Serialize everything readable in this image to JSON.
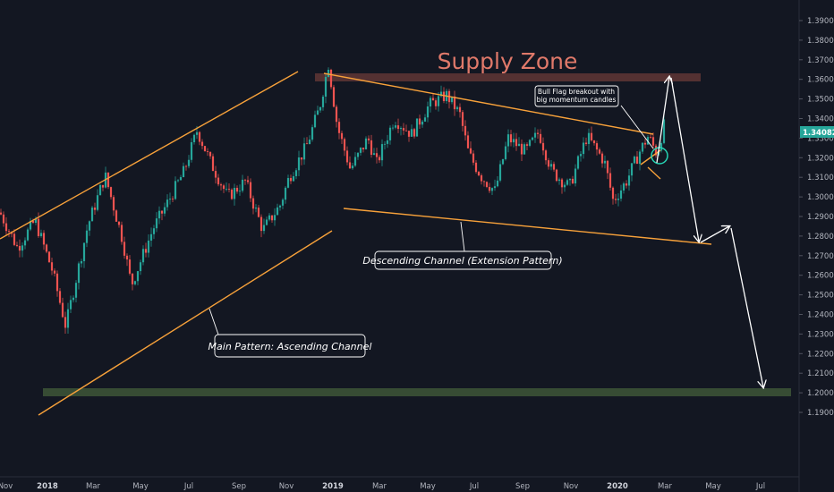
{
  "chart_data": {
    "type": "candlestick",
    "y_ticks": [
      "1.39000",
      "1.38000",
      "1.37000",
      "1.36000",
      "1.35000",
      "1.34000",
      "1.33000",
      "1.32000",
      "1.31000",
      "1.30000",
      "1.29000",
      "1.28000",
      "1.27000",
      "1.26000",
      "1.25000",
      "1.24000",
      "1.23000",
      "1.22000",
      "1.21000",
      "1.20000",
      "1.19000"
    ],
    "x_ticks": [
      {
        "label": "Nov",
        "bold": false,
        "x_index": 0
      },
      {
        "label": "2018",
        "bold": true,
        "x_index": 1
      },
      {
        "label": "Mar",
        "bold": false,
        "x_index": 2
      },
      {
        "label": "May",
        "bold": false,
        "x_index": 3
      },
      {
        "label": "Jul",
        "bold": false,
        "x_index": 4
      },
      {
        "label": "Sep",
        "bold": false,
        "x_index": 5
      },
      {
        "label": "Nov",
        "bold": false,
        "x_index": 6
      },
      {
        "label": "2019",
        "bold": true,
        "x_index": 7
      },
      {
        "label": "Mar",
        "bold": false,
        "x_index": 8
      },
      {
        "label": "May",
        "bold": false,
        "x_index": 9
      },
      {
        "label": "Jul",
        "bold": false,
        "x_index": 10
      },
      {
        "label": "Sep",
        "bold": false,
        "x_index": 11
      },
      {
        "label": "Nov",
        "bold": false,
        "x_index": 12
      },
      {
        "label": "2020",
        "bold": true,
        "x_index": 13
      },
      {
        "label": "Mar",
        "bold": false,
        "x_index": 14
      },
      {
        "label": "May",
        "bold": false,
        "x_index": 15
      },
      {
        "label": "Jul",
        "bold": false,
        "x_index": 16
      }
    ],
    "y_range": [
      1.19,
      1.395
    ],
    "last_price": "1.34082",
    "price_path": [
      [
        0,
        1.292
      ],
      [
        0.04,
        1.274
      ],
      [
        0.08,
        1.288
      ],
      [
        0.12,
        1.262
      ],
      [
        0.15,
        1.234
      ],
      [
        0.2,
        1.285
      ],
      [
        0.24,
        1.311
      ],
      [
        0.28,
        1.278
      ],
      [
        0.3,
        1.255
      ],
      [
        0.35,
        1.284
      ],
      [
        0.38,
        1.296
      ],
      [
        0.42,
        1.313
      ],
      [
        0.45,
        1.334
      ],
      [
        0.48,
        1.318
      ],
      [
        0.52,
        1.3
      ],
      [
        0.56,
        1.308
      ],
      [
        0.6,
        1.283
      ],
      [
        0.64,
        1.296
      ],
      [
        0.66,
        1.31
      ],
      [
        0.7,
        1.326
      ],
      [
        0.73,
        1.346
      ],
      [
        0.75,
        1.368
      ],
      [
        0.77,
        1.336
      ],
      [
        0.8,
        1.314
      ],
      [
        0.84,
        1.33
      ],
      [
        0.86,
        1.317
      ],
      [
        0.9,
        1.34
      ],
      [
        0.94,
        1.332
      ],
      [
        0.98,
        1.347
      ],
      [
        1.02,
        1.352
      ],
      [
        1.05,
        1.342
      ],
      [
        1.07,
        1.322
      ],
      [
        1.1,
        1.31
      ],
      [
        1.13,
        1.303
      ],
      [
        1.16,
        1.33
      ],
      [
        1.2,
        1.323
      ],
      [
        1.23,
        1.333
      ],
      [
        1.26,
        1.313
      ],
      [
        1.3,
        1.305
      ],
      [
        1.34,
        1.331
      ],
      [
        1.38,
        1.318
      ],
      [
        1.4,
        1.298
      ],
      [
        1.43,
        1.308
      ],
      [
        1.46,
        1.323
      ],
      [
        1.48,
        1.331
      ],
      [
        1.5,
        1.322
      ],
      [
        1.52,
        1.34
      ]
    ],
    "annotations": {
      "supply_zone": "Supply Zone",
      "bull_flag_line1": "Bull Flag breakout with",
      "bull_flag_line2": "big momentum candles",
      "descending_channel": "Descending Channel (Extension Pattern)",
      "ascending_channel": "Main Pattern: Ascending Channel"
    },
    "colors": {
      "background": "#131722",
      "bull": "#26a69a",
      "bear": "#ef5350",
      "channel_line": "#f7a13a",
      "supply_zone": "#5c3434",
      "demand_zone": "#3c5236",
      "supply_text": "#e0796a",
      "arrow": "#ffffff",
      "price_tag": "#26a69a",
      "grid_text": "#b2b5be"
    }
  }
}
